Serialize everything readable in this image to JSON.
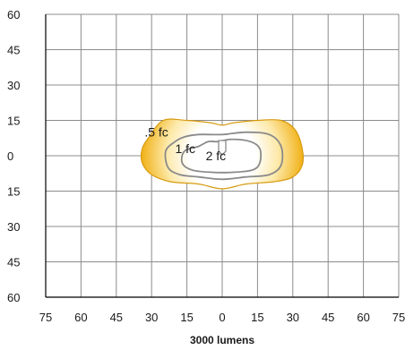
{
  "chart_data": {
    "type": "contour",
    "xlabel": "3000 lumens",
    "ylabel": "",
    "x_ticks": [
      "75",
      "60",
      "45",
      "30",
      "15",
      "0",
      "15",
      "30",
      "45",
      "60",
      "75"
    ],
    "y_ticks": [
      "60",
      "45",
      "30",
      "15",
      "0",
      "15",
      "30",
      "45",
      "60"
    ],
    "xlim": [
      -75,
      75
    ],
    "ylim": [
      -60,
      60
    ],
    "grid": true,
    "colors": {
      "grid": "#8c8c8c",
      "axis": "#000000",
      "contour_line": "#8a8a8a",
      "fill_outer": "#f1b31c",
      "fill_mid": "#fde9a9",
      "fill_inner": "#ffffff"
    },
    "contours": [
      {
        "label": ".5 fc",
        "label_at": [
          -33,
          10
        ],
        "points": [
          [
            -31,
            8
          ],
          [
            -34,
            3
          ],
          [
            -34,
            -3
          ],
          [
            -30,
            -8
          ],
          [
            -22,
            -11
          ],
          [
            -10,
            -12
          ],
          [
            0,
            -14
          ],
          [
            10,
            -12
          ],
          [
            22,
            -11
          ],
          [
            30,
            -9
          ],
          [
            34,
            -4
          ],
          [
            34,
            3
          ],
          [
            31,
            11
          ],
          [
            25,
            15
          ],
          [
            15,
            15
          ],
          [
            5,
            14
          ],
          [
            0,
            13
          ],
          [
            -5,
            14
          ],
          [
            -15,
            15
          ],
          [
            -25,
            15
          ]
        ]
      },
      {
        "label": "1 fc",
        "label_at": [
          -20,
          3
        ],
        "points": [
          [
            -20,
            6
          ],
          [
            -24,
            2
          ],
          [
            -23,
            -5
          ],
          [
            -18,
            -8
          ],
          [
            -10,
            -9
          ],
          [
            0,
            -10
          ],
          [
            10,
            -9
          ],
          [
            20,
            -8
          ],
          [
            25,
            -4
          ],
          [
            25,
            4
          ],
          [
            20,
            9
          ],
          [
            10,
            10
          ],
          [
            0,
            9
          ],
          [
            -10,
            9
          ],
          [
            -16,
            8
          ]
        ]
      },
      {
        "label": "2 fc",
        "label_at": [
          -7,
          0
        ],
        "points": [
          [
            -10,
            4
          ],
          [
            -16,
            2
          ],
          [
            -17,
            -3
          ],
          [
            -13,
            -6
          ],
          [
            -5,
            -7
          ],
          [
            5,
            -7
          ],
          [
            13,
            -6
          ],
          [
            16,
            -3
          ],
          [
            16,
            3
          ],
          [
            12,
            6
          ],
          [
            4,
            7
          ],
          [
            -2,
            6
          ],
          [
            -6,
            6
          ]
        ]
      }
    ]
  }
}
